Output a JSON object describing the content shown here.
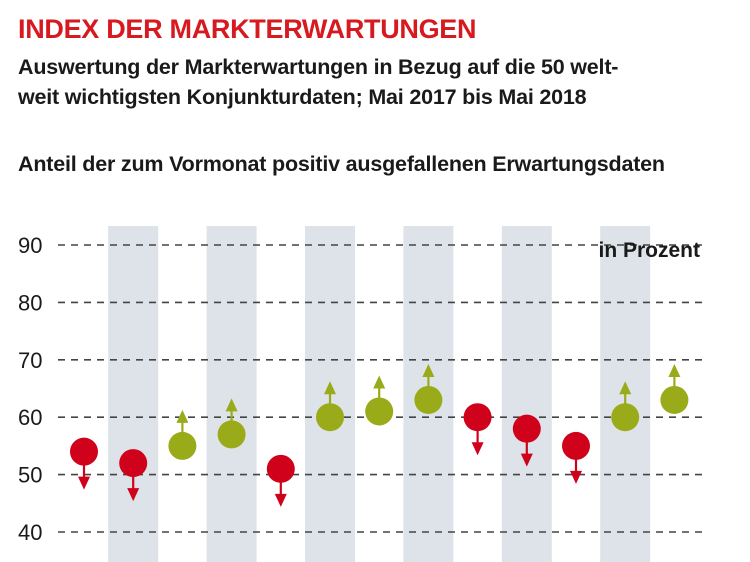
{
  "header": {
    "title": "INDEX DER MARKTERWARTUNGEN",
    "subtitle_line1": "Auswertung der Markterwartungen in Bezug auf die 50 welt-",
    "subtitle_line2": "weit wichtigsten Konjunkturdaten; Mai 2017 bis Mai 2018"
  },
  "chart_heading": "Anteil der zum Vormonat positiv ausgefallenen Erwartungsdaten",
  "colors": {
    "title_red": "#d71920",
    "down_red": "#d0021b",
    "up_green": "#9aab1a",
    "band_gray": "#dde3e8",
    "grid": "#444444"
  },
  "chart_data": {
    "type": "scatter",
    "title": "",
    "unit_label": "in Prozent",
    "ylim": [
      40,
      90
    ],
    "y_ticks": [
      90,
      80,
      70,
      60,
      50,
      40
    ],
    "grid": "dashed horizontal",
    "shaded_bands": "alternating columns",
    "points": [
      {
        "value": 54,
        "direction": "down"
      },
      {
        "value": 52,
        "direction": "down"
      },
      {
        "value": 55,
        "direction": "up"
      },
      {
        "value": 57,
        "direction": "up"
      },
      {
        "value": 51,
        "direction": "down"
      },
      {
        "value": 60,
        "direction": "up"
      },
      {
        "value": 61,
        "direction": "up"
      },
      {
        "value": 63,
        "direction": "up"
      },
      {
        "value": 60,
        "direction": "down"
      },
      {
        "value": 58,
        "direction": "down"
      },
      {
        "value": 55,
        "direction": "down"
      },
      {
        "value": 60,
        "direction": "up"
      },
      {
        "value": 63,
        "direction": "up"
      }
    ]
  }
}
